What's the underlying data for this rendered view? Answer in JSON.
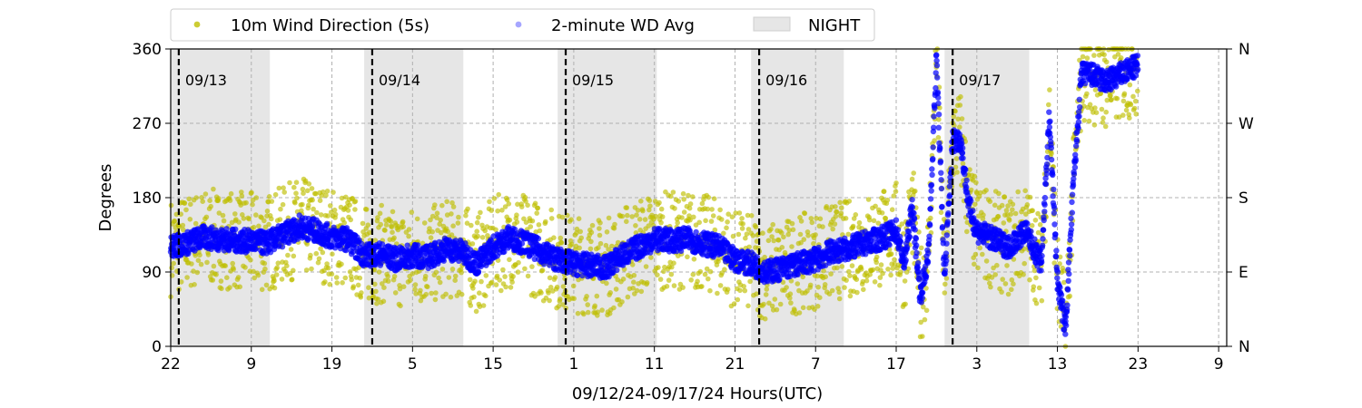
{
  "chart_data": {
    "type": "scatter",
    "xlabel": "09/12/24-09/17/24  Hours(UTC)",
    "ylabel": "Degrees",
    "x_unit": "hours",
    "xlim": [
      0,
      131
    ],
    "ylim": [
      0,
      360
    ],
    "x_tick_labels": [
      "22",
      "9",
      "19",
      "5",
      "15",
      "1",
      "11",
      "21",
      "7",
      "17",
      "3",
      "13",
      "23",
      "9"
    ],
    "x_tick_hours": [
      0,
      10,
      20,
      30,
      40,
      50,
      60,
      70,
      80,
      90,
      100,
      110,
      120,
      130
    ],
    "y_ticks": [
      0,
      90,
      180,
      270,
      360
    ],
    "y_right_ticks": [
      {
        "value": 0,
        "label": "N"
      },
      {
        "value": 90,
        "label": "E"
      },
      {
        "value": 180,
        "label": "S"
      },
      {
        "value": 270,
        "label": "W"
      },
      {
        "value": 360,
        "label": "N"
      }
    ],
    "grid": true,
    "legend_position": "top, above plot",
    "legend": [
      {
        "label": "10m Wind Direction (5s)",
        "marker": "dot",
        "color": "#bfbf00"
      },
      {
        "label": "2-minute WD Avg",
        "marker": "dot",
        "color": "#0000ff"
      },
      {
        "label": "NIGHT",
        "marker": "patch",
        "color": "#e6e6e6"
      }
    ],
    "night_spans_hours": [
      [
        0,
        12.3
      ],
      [
        24,
        36.3
      ],
      [
        48,
        60.3
      ],
      [
        72,
        83.5
      ],
      [
        96,
        106.5
      ]
    ],
    "day_markers": [
      {
        "hour": 1,
        "label": "09/13"
      },
      {
        "hour": 25,
        "label": "09/14"
      },
      {
        "hour": 49,
        "label": "09/15"
      },
      {
        "hour": 73,
        "label": "09/16"
      },
      {
        "hour": 97,
        "label": "09/17"
      }
    ],
    "series": [
      {
        "name": "2-minute WD Avg",
        "color": "#0000ff",
        "x": [
          0,
          2,
          4,
          6,
          8,
          10,
          12,
          14,
          16,
          18,
          20,
          22,
          24,
          26,
          28,
          30,
          32,
          34,
          36,
          38,
          40,
          42,
          44,
          46,
          48,
          50,
          52,
          54,
          56,
          58,
          60,
          62,
          64,
          66,
          68,
          70,
          72,
          74,
          76,
          78,
          80,
          82,
          84,
          86,
          88,
          90,
          91,
          92,
          93,
          94,
          95,
          96,
          97,
          98,
          99,
          100,
          102,
          104,
          106,
          108,
          109,
          110,
          111,
          112,
          113,
          114,
          116,
          118,
          120
        ],
        "y": [
          120,
          125,
          132,
          130,
          128,
          127,
          125,
          135,
          145,
          140,
          132,
          130,
          110,
          112,
          105,
          110,
          108,
          118,
          115,
          100,
          120,
          132,
          125,
          115,
          105,
          100,
          98,
          95,
          110,
          120,
          130,
          128,
          130,
          125,
          120,
          105,
          100,
          90,
          95,
          100,
          105,
          115,
          118,
          125,
          130,
          140,
          100,
          170,
          60,
          110,
          350,
          80,
          250,
          250,
          170,
          140,
          130,
          120,
          140,
          100,
          280,
          80,
          20,
          200,
          330,
          330,
          320,
          330,
          340
        ]
      },
      {
        "name": "10m Wind Direction (5s)",
        "color": "#bfbf00",
        "x": [
          0,
          2,
          4,
          6,
          8,
          10,
          12,
          14,
          16,
          18,
          20,
          22,
          24,
          26,
          28,
          30,
          32,
          34,
          36,
          38,
          40,
          42,
          44,
          46,
          48,
          50,
          52,
          54,
          56,
          58,
          60,
          62,
          64,
          66,
          68,
          70,
          72,
          74,
          76,
          78,
          80,
          82,
          84,
          86,
          88,
          90,
          91,
          92,
          93,
          94,
          95,
          96,
          97,
          98,
          99,
          100,
          102,
          104,
          106,
          108,
          109,
          110,
          111,
          112,
          113,
          114,
          116,
          118,
          120
        ],
        "y": [
          120,
          125,
          132,
          130,
          128,
          127,
          125,
          135,
          145,
          140,
          132,
          130,
          110,
          112,
          105,
          110,
          108,
          118,
          115,
          100,
          120,
          132,
          125,
          115,
          105,
          100,
          98,
          95,
          110,
          120,
          130,
          128,
          130,
          125,
          120,
          105,
          100,
          90,
          95,
          100,
          105,
          115,
          118,
          125,
          130,
          140,
          100,
          170,
          60,
          110,
          350,
          80,
          250,
          250,
          170,
          140,
          130,
          120,
          140,
          100,
          280,
          80,
          20,
          200,
          330,
          330,
          320,
          330,
          340
        ],
        "spread": 60
      }
    ]
  }
}
